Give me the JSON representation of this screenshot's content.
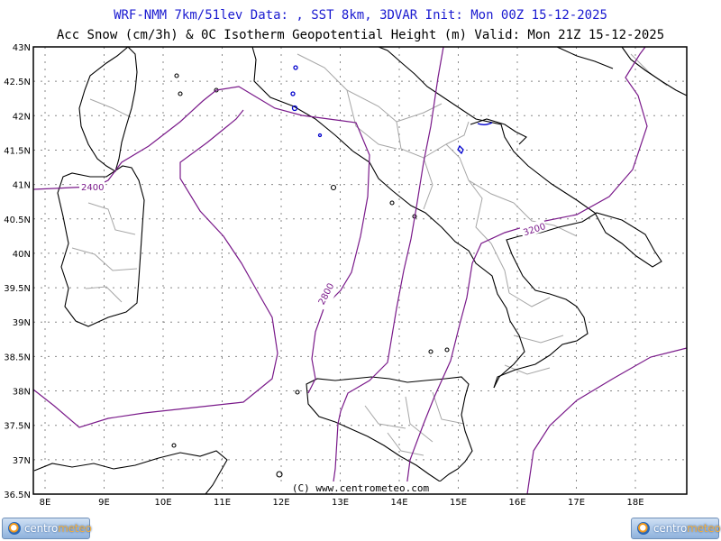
{
  "header": {
    "line1": "WRF-NMM 7km/51lev   Data: , SST 8km, 3DVAR   Init: Mon 00Z 15-12-2025",
    "line2": "Acc Snow (cm/3h) & 0C Isotherm Geopotential Height (m)  Valid: Mon 21Z 15-12-2025"
  },
  "map": {
    "lat_labels": [
      "43N",
      "42.5N",
      "42N",
      "41.5N",
      "41N",
      "40.5N",
      "40N",
      "39.5N",
      "39N",
      "38.5N",
      "38N",
      "37.5N",
      "37N",
      "36.5N"
    ],
    "lon_labels": [
      "8E",
      "9E",
      "10E",
      "11E",
      "12E",
      "13E",
      "14E",
      "15E",
      "16E",
      "17E",
      "18E"
    ],
    "contour_labels": [
      "2400",
      "2800",
      "3200"
    ],
    "credit": "(C) www.centrometeo.com",
    "colors": {
      "frame": "#000000",
      "coast": "#000000",
      "borders": "#a0a0a0",
      "contour": "#7a1a8a",
      "snow": "#0000cc",
      "grid": "#888888"
    }
  },
  "logos": {
    "left": {
      "part1": "centro",
      "part2": "meteo"
    },
    "right": {
      "part1": "centro",
      "part2": "meteo"
    }
  }
}
